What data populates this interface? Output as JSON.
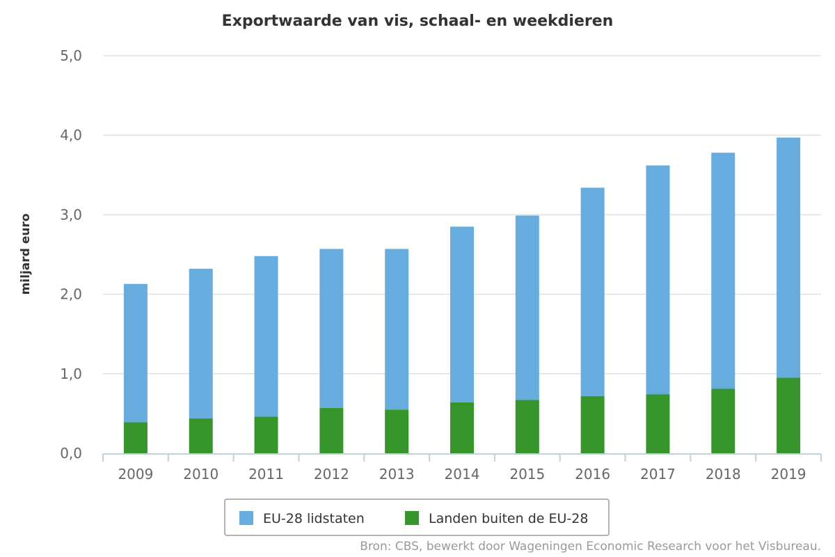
{
  "chart_data": {
    "type": "bar",
    "stacked": true,
    "title": "Exportwaarde van vis, schaal- en weekdieren",
    "ylabel": "miljard euro",
    "xlabel": "",
    "categories": [
      "2009",
      "2010",
      "2011",
      "2012",
      "2013",
      "2014",
      "2015",
      "2016",
      "2017",
      "2018",
      "2019"
    ],
    "ylim": [
      0,
      5
    ],
    "yticks": [
      "0,0",
      "1,0",
      "2,0",
      "3,0",
      "4,0",
      "5,0"
    ],
    "grid": true,
    "legend_position": "bottom",
    "series": [
      {
        "name": "Landen buiten de EU-28",
        "color": "#36962b",
        "values": [
          0.39,
          0.44,
          0.46,
          0.57,
          0.55,
          0.64,
          0.67,
          0.72,
          0.74,
          0.81,
          0.95
        ]
      },
      {
        "name": "EU-28 lidstaten",
        "color": "#67acde",
        "values": [
          1.74,
          1.88,
          2.02,
          2.0,
          2.02,
          2.21,
          2.32,
          2.62,
          2.88,
          2.97,
          3.02
        ]
      }
    ],
    "legend_order": [
      1,
      0
    ],
    "source": "Bron: CBS, bewerkt door Wageningen Economic Research voor het Visbureau."
  }
}
